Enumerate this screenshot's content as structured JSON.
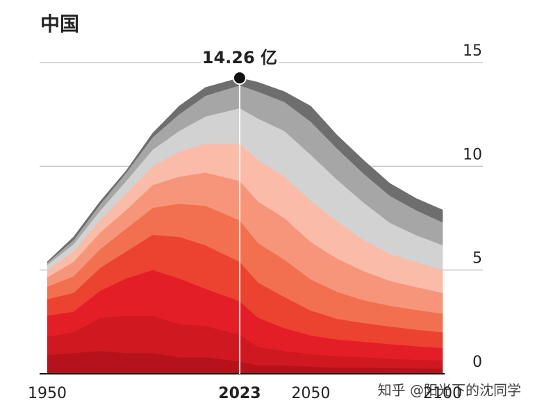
{
  "chart_data": {
    "type": "stacked-area",
    "title": "中国",
    "x": [
      1950,
      1960,
      1970,
      1980,
      1990,
      2000,
      2010,
      2023,
      2030,
      2040,
      2050,
      2060,
      2070,
      2080,
      2090,
      2100
    ],
    "series": [
      {
        "color": "#b5121b",
        "values": [
          0.9,
          1.0,
          1.1,
          1.0,
          1.0,
          0.8,
          0.8,
          0.6,
          0.4,
          0.4,
          0.35,
          0.3,
          0.3,
          0.28,
          0.26,
          0.25
        ]
      },
      {
        "color": "#cf1820",
        "values": [
          0.9,
          1.0,
          1.6,
          1.8,
          1.8,
          1.6,
          1.5,
          1.3,
          0.9,
          0.7,
          0.6,
          0.55,
          0.5,
          0.45,
          0.42,
          0.4
        ]
      },
      {
        "color": "#e41e26",
        "values": [
          1.0,
          1.0,
          1.3,
          1.8,
          2.2,
          2.2,
          1.8,
          1.6,
          1.4,
          1.1,
          0.9,
          0.8,
          0.75,
          0.7,
          0.65,
          0.6
        ]
      },
      {
        "color": "#ec4230",
        "values": [
          0.8,
          0.9,
          1.1,
          1.3,
          1.7,
          2.0,
          2.1,
          1.9,
          1.7,
          1.5,
          1.2,
          1.0,
          0.9,
          0.85,
          0.8,
          0.75
        ]
      },
      {
        "color": "#f2704f",
        "values": [
          0.6,
          0.8,
          0.9,
          1.1,
          1.3,
          1.6,
          1.9,
          2.0,
          1.9,
          1.8,
          1.5,
          1.3,
          1.1,
          1.0,
          0.95,
          0.9
        ]
      },
      {
        "color": "#f6957a",
        "values": [
          0.45,
          0.7,
          0.8,
          0.9,
          1.1,
          1.3,
          1.6,
          1.9,
          2.0,
          2.0,
          1.8,
          1.6,
          1.4,
          1.2,
          1.1,
          1.0
        ]
      },
      {
        "color": "#fabca8",
        "values": [
          0.35,
          0.5,
          0.6,
          0.8,
          0.9,
          1.2,
          1.4,
          1.8,
          2.0,
          2.0,
          2.0,
          1.8,
          1.5,
          1.3,
          1.2,
          1.1
        ]
      },
      {
        "color": "#d2d2d2",
        "values": [
          0.25,
          0.35,
          0.45,
          0.6,
          0.8,
          1.0,
          1.3,
          1.7,
          2.0,
          2.2,
          2.2,
          2.0,
          1.8,
          1.5,
          1.3,
          1.2
        ]
      },
      {
        "color": "#a6a6a6",
        "values": [
          0.1,
          0.2,
          0.3,
          0.4,
          0.6,
          0.8,
          1.0,
          1.1,
          1.3,
          1.4,
          1.6,
          1.5,
          1.4,
          1.3,
          1.2,
          1.1
        ]
      },
      {
        "color": "#6e6e6e",
        "values": [
          0.05,
          0.15,
          0.15,
          0.1,
          0.2,
          0.4,
          0.4,
          0.36,
          0.45,
          0.5,
          0.75,
          0.65,
          0.65,
          0.6,
          0.57,
          0.6
        ]
      }
    ],
    "xlim": [
      1950,
      2100
    ],
    "xticks": [
      1950,
      2023,
      2050,
      2100
    ],
    "ylim": [
      0,
      15
    ],
    "yticks": [
      0,
      5,
      10,
      15
    ],
    "grid": true,
    "annotation": {
      "x": 2023,
      "value": 14.26,
      "label": "14.26 亿"
    },
    "watermark": "知乎 @阳光下的沈同学"
  }
}
